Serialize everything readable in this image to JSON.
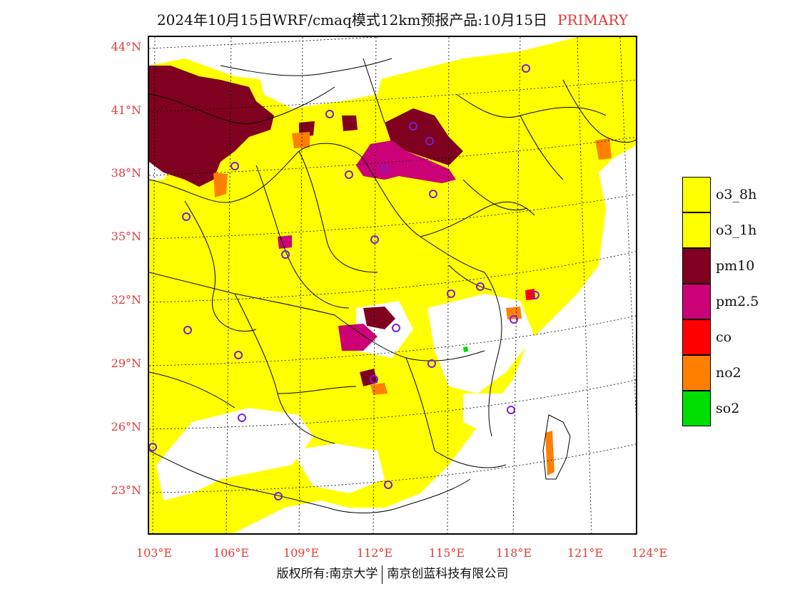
{
  "title": {
    "text": "2024年10月15日WRF/cmaq模式12km预报产品:10月15日",
    "product": "PRIMARY"
  },
  "axes": {
    "lat_labels": [
      "44°N",
      "41°N",
      "38°N",
      "35°N",
      "32°N",
      "29°N",
      "26°N",
      "23°N"
    ],
    "lon_labels": [
      "103°E",
      "106°E",
      "109°E",
      "112°E",
      "115°E",
      "118°E",
      "121°E",
      "124°E"
    ]
  },
  "legend": {
    "items": [
      {
        "label": "o3_8h",
        "color": "#ffff00"
      },
      {
        "label": "o3_1h",
        "color": "#ffff00"
      },
      {
        "label": "pm10",
        "color": "#800020"
      },
      {
        "label": "pm2.5",
        "color": "#cc0077"
      },
      {
        "label": "co",
        "color": "#ff0000"
      },
      {
        "label": "no2",
        "color": "#ff8000"
      },
      {
        "label": "so2",
        "color": "#00dd00"
      }
    ]
  },
  "footer": {
    "left": "版权所有:南京大学",
    "right": "南京创蓝科技有限公司"
  },
  "colors": {
    "accent": "#e23a3a",
    "station_marker": "#7a1fd1"
  }
}
